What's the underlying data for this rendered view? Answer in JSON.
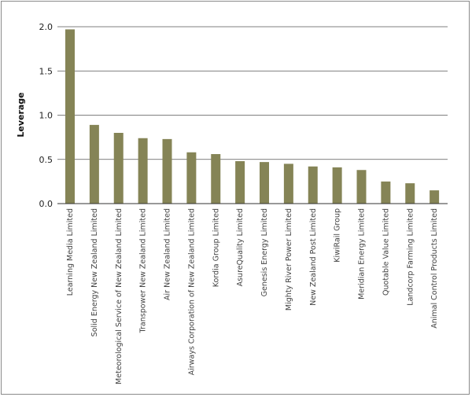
{
  "chart_data": {
    "type": "bar",
    "title": "",
    "xlabel": "",
    "ylabel": "Leverage",
    "ylim": [
      0,
      2.0
    ],
    "yticks": [
      "0.0",
      "0.5",
      "1.0",
      "1.5",
      "2.0"
    ],
    "grid": true,
    "bar_color": "#858456",
    "categories": [
      "Learning Media Limited",
      "Solid Energy New Zealand Limited",
      "Meteorological Service of New Zealand Limited",
      "Transpower New Zealand Limited",
      "Air New Zealand Limited",
      "Airways Corporation of New Zealand Limited",
      "Kordia Group Limited",
      "AsureQuality Limited",
      "Genesis Energy Limited",
      "Mighty River Power Limited",
      "New Zealand Post Limited",
      "KiwiRail Group",
      "Meridian Energy Limited",
      "Quotable Value Limited",
      "Landcorp Farming Limited",
      "Animal Control Products Limited"
    ],
    "values": [
      1.97,
      0.89,
      0.8,
      0.74,
      0.73,
      0.58,
      0.56,
      0.48,
      0.47,
      0.45,
      0.42,
      0.41,
      0.38,
      0.25,
      0.23,
      0.15
    ]
  }
}
